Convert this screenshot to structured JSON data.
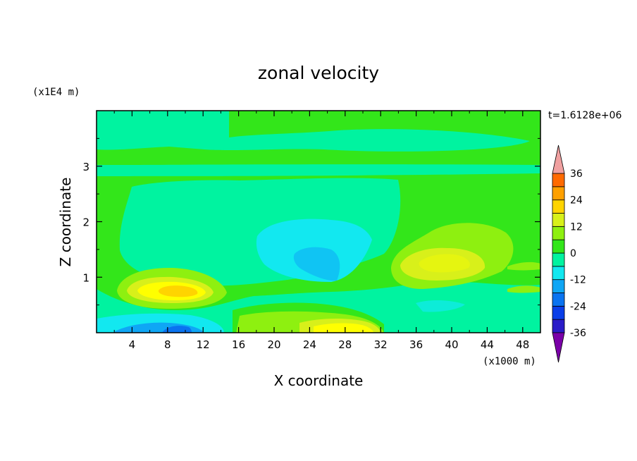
{
  "chart_data": {
    "type": "heatmap",
    "title": "zonal velocity",
    "time_label": "t=1.6128e+06",
    "xlabel": "X coordinate",
    "ylabel": "Z coordinate",
    "x_unit": "(x1000 m)",
    "y_unit": "(x1E4 m)",
    "xlim": [
      0,
      50
    ],
    "ylim": [
      0,
      4
    ],
    "x_ticks": [
      "4",
      "8",
      "12",
      "16",
      "20",
      "24",
      "28",
      "32",
      "36",
      "40",
      "44",
      "48"
    ],
    "y_ticks": [
      "1",
      "2",
      "3"
    ],
    "colorbar": {
      "labels": [
        "36",
        "24",
        "12",
        "0",
        "-12",
        "-24",
        "-36"
      ],
      "levels": [
        -42,
        -36,
        -30,
        -24,
        -18,
        -12,
        -6,
        0,
        6,
        12,
        18,
        24,
        30,
        36,
        42
      ],
      "extend": "both",
      "colors": [
        "#7a00a8",
        "#4b0fa0",
        "#2a1cc8",
        "#0a3ee8",
        "#0a73f0",
        "#0fa6f5",
        "#12e8f0",
        "#00f3a0",
        "#33e61a",
        "#8ef010",
        "#d8f01a",
        "#ffd400",
        "#ffa000",
        "#ff6a00",
        "#ff3c14",
        "#f0a0a0"
      ]
    },
    "background_level": "0 to 6",
    "features": [
      {
        "kind": "max",
        "x": 9,
        "z": 0.75,
        "value": 21
      },
      {
        "kind": "max",
        "x": 26,
        "z": 0.1,
        "value": 15
      },
      {
        "kind": "max",
        "x": 39,
        "z": 1.35,
        "value": 12
      },
      {
        "kind": "min",
        "x": 24,
        "z": 1.4,
        "value": -10
      },
      {
        "kind": "min",
        "x": 8,
        "z": 0.05,
        "value": -16
      },
      {
        "kind": "band",
        "z": 3.0,
        "value": 0
      }
    ]
  }
}
